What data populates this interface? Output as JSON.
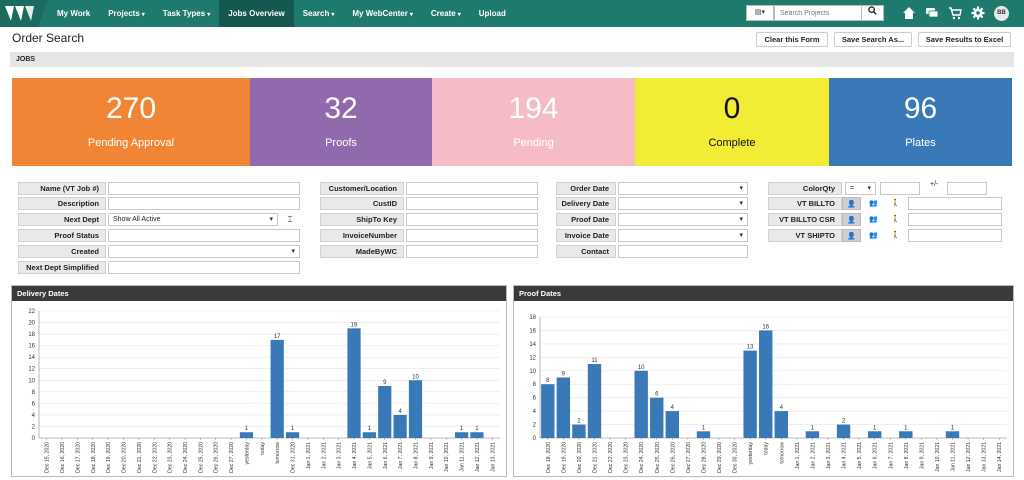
{
  "nav": {
    "items": [
      {
        "label": "My Work",
        "dropdown": false,
        "active": false
      },
      {
        "label": "Projects",
        "dropdown": true,
        "active": false
      },
      {
        "label": "Task Types",
        "dropdown": true,
        "active": false
      },
      {
        "label": "Jobs Overview",
        "dropdown": false,
        "active": true
      },
      {
        "label": "Search",
        "dropdown": true,
        "active": false
      },
      {
        "label": "My WebCenter",
        "dropdown": true,
        "active": false
      },
      {
        "label": "Create",
        "dropdown": true,
        "active": false
      },
      {
        "label": "Upload",
        "dropdown": false,
        "active": false
      }
    ],
    "search_placeholder": "Search Projects",
    "avatar_initials": "BB",
    "icons": [
      "search-icon",
      "home-icon",
      "chat-icon",
      "cart-icon",
      "gear-icon"
    ]
  },
  "page": {
    "title": "Order Search",
    "clear_label": "Clear this Form",
    "save_search_label": "Save Search As...",
    "save_excel_label": "Save Results to Excel",
    "section_label": "JOBS"
  },
  "tiles": [
    {
      "value": "270",
      "label": "Pending Approval",
      "color": "#f08536",
      "text_color": "#ffffff"
    },
    {
      "value": "32",
      "label": "Proofs",
      "color": "#916aad",
      "text_color": "#ffffff"
    },
    {
      "value": "194",
      "label": "Pending",
      "color": "#f5bcc6",
      "text_color": "#ffffff"
    },
    {
      "value": "0",
      "label": "Complete",
      "color": "#f2ec34",
      "text_color": "#111111"
    },
    {
      "value": "96",
      "label": "Plates",
      "color": "#3a79b7",
      "text_color": "#ffffff"
    }
  ],
  "form": {
    "col1": {
      "labels": [
        "Name (VT Job #)",
        "Description",
        "Next Dept",
        "Proof Status",
        "Created",
        "Next Dept Simplified"
      ],
      "next_dept_value": "Show All Active"
    },
    "col2": {
      "labels": [
        "Customer/Location",
        "CustID",
        "ShipTo Key",
        "InvoiceNumber",
        "MadeByWC"
      ]
    },
    "col3": {
      "labels": [
        "Order Date",
        "Delivery Date",
        "Proof Date",
        "Invoice Date",
        "Contact"
      ]
    },
    "col4": {
      "labels": [
        "ColorQty",
        "VT BILLTO",
        "VT BILLTO CSR",
        "VT SHIPTO"
      ],
      "operator": "=",
      "plusminus": "+/-"
    }
  },
  "charts": {
    "delivery": {
      "title": "Delivery Dates",
      "chart_data": {
        "type": "bar",
        "title": "Delivery Dates",
        "ylim": [
          0,
          22
        ],
        "yticks": [
          0,
          2,
          4,
          6,
          8,
          10,
          12,
          14,
          16,
          18,
          20,
          22
        ],
        "categories": [
          "Dec 15, 2020",
          "Dec 16, 2020",
          "Dec 17, 2020",
          "Dec 18, 2020",
          "Dec 19, 2020",
          "Dec 20, 2020",
          "Dec 21, 2020",
          "Dec 22, 2020",
          "Dec 23, 2020",
          "Dec 24, 2020",
          "Dec 25, 2020",
          "Dec 26, 2020",
          "Dec 27, 2020",
          "yesterday",
          "today",
          "tomorrow",
          "Dec 31, 2020",
          "Jan 1, 2021",
          "Jan 2, 2021",
          "Jan 3, 2021",
          "Jan 4, 2021",
          "Jan 5, 2021",
          "Jan 6, 2021",
          "Jan 7, 2021",
          "Jan 8, 2021",
          "Jan 9, 2021",
          "Jan 10, 2021",
          "Jan 11, 2021",
          "Jan 12, 2021",
          "Jan 13, 2021"
        ],
        "values": [
          0,
          0,
          0,
          0,
          0,
          0,
          0,
          0,
          0,
          0,
          0,
          0,
          0,
          1,
          0,
          17,
          1,
          0,
          0,
          0,
          19,
          1,
          9,
          4,
          10,
          0,
          0,
          1,
          1,
          0
        ],
        "color": "#3a79b7"
      }
    },
    "proof": {
      "title": "Proof Dates",
      "chart_data": {
        "type": "bar",
        "title": "Proof Dates",
        "ylim": [
          0,
          18
        ],
        "yticks": [
          0,
          2,
          4,
          6,
          8,
          10,
          12,
          14,
          16,
          18
        ],
        "categories": [
          "Dec 18, 2020",
          "Dec 19, 2020",
          "Dec 20, 2020",
          "Dec 21, 2020",
          "Dec 22, 2020",
          "Dec 23, 2020",
          "Dec 24, 2020",
          "Dec 25, 2020",
          "Dec 26, 2020",
          "Dec 27, 2020",
          "Dec 28, 2020",
          "Dec 29, 2020",
          "Dec 30, 2020",
          "yesterday",
          "today",
          "tomorrow",
          "Jan 1, 2021",
          "Jan 2, 2021",
          "Jan 3, 2021",
          "Jan 4, 2021",
          "Jan 5, 2021",
          "Jan 6, 2021",
          "Jan 7, 2021",
          "Jan 8, 2021",
          "Jan 9, 2021",
          "Jan 10, 2021",
          "Jan 11, 2021",
          "Jan 12, 2021",
          "Jan 13, 2021",
          "Jan 14, 2021"
        ],
        "values": [
          8,
          9,
          2,
          11,
          0,
          0,
          10,
          6,
          4,
          0,
          1,
          0,
          0,
          13,
          16,
          4,
          0,
          1,
          0,
          2,
          0,
          1,
          0,
          1,
          0,
          0,
          1,
          0,
          0,
          0
        ],
        "color": "#3a79b7"
      }
    }
  }
}
